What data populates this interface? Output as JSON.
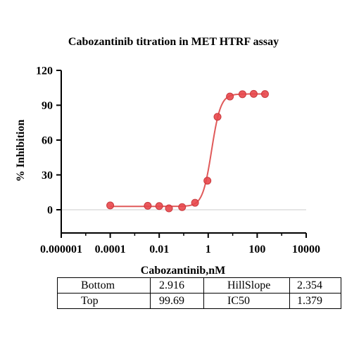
{
  "chart_data": {
    "type": "scatter",
    "title": "Cabozantinib titration in MET HTRF assay",
    "xlabel": "Cabozantinib,nM",
    "ylabel": "% Inhibition",
    "xscale": "log",
    "xlim": [
      1e-06,
      10000
    ],
    "ylim": [
      -20,
      120
    ],
    "x_ticks": [
      1e-06,
      0.0001,
      0.01,
      1,
      100,
      10000
    ],
    "x_tick_labels": [
      "0.000001",
      "0.0001",
      "0.01",
      "1",
      "100",
      "10000"
    ],
    "y_ticks": [
      0,
      30,
      60,
      90,
      120
    ],
    "y_tick_labels": [
      "0",
      "30",
      "60",
      "90",
      "120"
    ],
    "series": [
      {
        "color": "#e8474b",
        "x": [
          0.0001,
          0.0034,
          0.01,
          0.025,
          0.086,
          0.29,
          0.93,
          2.4,
          7.7,
          25,
          72,
          208
        ],
        "y": [
          3.7,
          3.4,
          3.2,
          1.2,
          2.3,
          6.0,
          25.0,
          80.0,
          97.5,
          99.5,
          99.8,
          99.6
        ]
      }
    ],
    "fit": {
      "model": "four-parameter logistic",
      "bottom": 2.916,
      "top": 99.69,
      "hillslope": 2.354,
      "ic50": 1.379
    },
    "zero_line": true
  },
  "params_table": [
    [
      "Bottom",
      "2.916",
      "HillSlope",
      "2.354"
    ],
    [
      "Top",
      "99.69",
      "IC50",
      "1.379"
    ]
  ],
  "colors": {
    "series": "#e8474b",
    "fit_line": "#e05a5a",
    "zero_line": "#dddddd",
    "axis": "#000000"
  }
}
